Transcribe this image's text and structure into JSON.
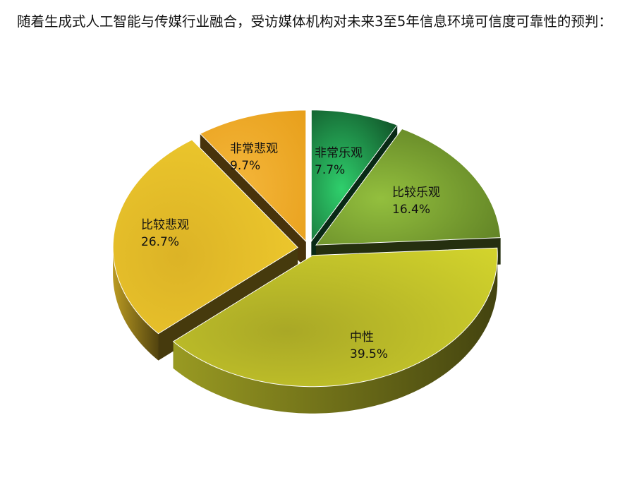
{
  "chart_data": {
    "type": "pie",
    "style": "3d-exploded",
    "title": "随着生成式人工智能与传媒行业融合，受访媒体机构对未来3至5年信息环境可信度可靠性的预判：",
    "slices": [
      {
        "name": "非常乐观",
        "value": 7.7,
        "label": "7.7%",
        "color": "#1e8a45"
      },
      {
        "name": "比较乐观",
        "value": 16.4,
        "label": "16.4%",
        "color": "#7a9e32"
      },
      {
        "name": "中性",
        "value": 39.5,
        "label": "39.5%",
        "color": "#bfc02a"
      },
      {
        "name": "比较悲观",
        "value": 26.7,
        "label": "26.7%",
        "color": "#e9c12a"
      },
      {
        "name": "非常悲观",
        "value": 9.7,
        "label": "9.7%",
        "color": "#efa923"
      }
    ],
    "start_angle": "12 o'clock",
    "direction": "clockwise",
    "legend": "none"
  }
}
